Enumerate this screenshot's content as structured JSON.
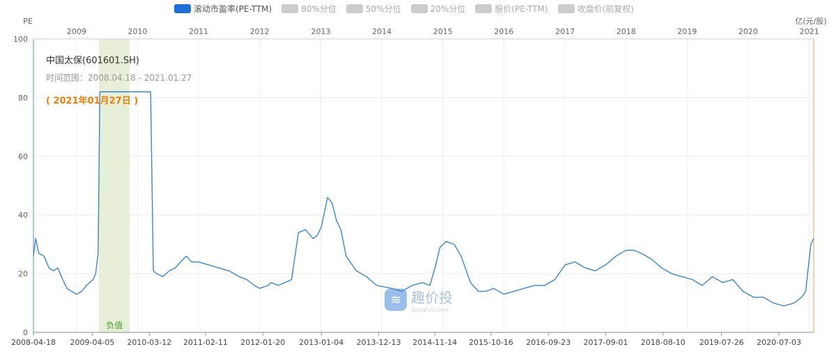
{
  "legend": [
    {
      "label": "滚动市盈率(PE-TTM)",
      "color": "#1f6fd6",
      "active": true
    },
    {
      "label": "80%分位",
      "color": "#cccccc",
      "active": false
    },
    {
      "label": "50%分位",
      "color": "#cccccc",
      "active": false
    },
    {
      "label": "20%分位",
      "color": "#cccccc",
      "active": false
    },
    {
      "label": "股价(PE-TTM)",
      "color": "#cccccc",
      "active": false
    },
    {
      "label": "收盘价(前复权)",
      "color": "#cccccc",
      "active": false
    }
  ],
  "info": {
    "name": "中国太保(601601.SH)",
    "range": "时间范围：2008.04.18 - 2021.01.27",
    "date": "( 2021年01月27日 )"
  },
  "watermark": {
    "text": "趣价投",
    "sub": "Qujiatou.com"
  },
  "chart_data": {
    "type": "line",
    "ylabel_left": "PE",
    "ylabel_right": "亿(元/股)",
    "ylim": [
      0,
      100
    ],
    "yticks": [
      0,
      20,
      40,
      60,
      80,
      100
    ],
    "xlim": [
      "2008-04-18",
      "2021-01-27"
    ],
    "bottom_ticks": [
      "2008-04-18",
      "2009-04-05",
      "2010-03-12",
      "2011-02-11",
      "2012-01-20",
      "2013-01-04",
      "2013-12-13",
      "2014-11-14",
      "2015-10-16",
      "2016-09-23",
      "2017-09-01",
      "2018-08-10",
      "2019-07-26",
      "2020-07-03"
    ],
    "top_ticks": [
      "2009",
      "2010",
      "2011",
      "2012",
      "2013",
      "2014",
      "2015",
      "2016",
      "2017",
      "2018",
      "2019",
      "2020",
      "2021"
    ],
    "shaded_region": {
      "start": "2009-05-15",
      "end": "2009-11-15",
      "label": "负值",
      "color": "#e7efd9"
    },
    "grid": true,
    "series": [
      {
        "name": "滚动市盈率(PE-TTM)",
        "color": "#3a86c8",
        "x": [
          "2008-04-18",
          "2008-05-01",
          "2008-05-20",
          "2008-06-20",
          "2008-07-20",
          "2008-08-15",
          "2008-09-10",
          "2008-10-10",
          "2008-11-05",
          "2008-12-01",
          "2009-01-01",
          "2009-02-01",
          "2009-03-01",
          "2009-04-10",
          "2009-04-25",
          "2009-05-10",
          "2009-05-20",
          "2009-08-01",
          "2010-03-20",
          "2010-04-05",
          "2010-04-25",
          "2010-06-01",
          "2010-07-10",
          "2010-08-15",
          "2010-09-15",
          "2010-10-20",
          "2010-11-20",
          "2011-01-01",
          "2011-03-01",
          "2011-05-01",
          "2011-07-01",
          "2011-09-01",
          "2011-10-15",
          "2011-12-01",
          "2012-01-01",
          "2012-02-20",
          "2012-03-10",
          "2012-04-20",
          "2012-06-01",
          "2012-07-10",
          "2012-08-20",
          "2012-10-01",
          "2012-11-15",
          "2012-12-10",
          "2013-01-04",
          "2013-02-10",
          "2013-03-10",
          "2013-04-05",
          "2013-05-01",
          "2013-06-01",
          "2013-08-01",
          "2013-10-01",
          "2013-12-01",
          "2014-03-01",
          "2014-05-01",
          "2014-07-01",
          "2014-09-01",
          "2014-10-15",
          "2014-11-15",
          "2014-12-15",
          "2015-01-20",
          "2015-03-10",
          "2015-04-20",
          "2015-06-15",
          "2015-08-01",
          "2015-09-15",
          "2015-11-01",
          "2016-01-01",
          "2016-03-01",
          "2016-05-01",
          "2016-07-01",
          "2016-09-01",
          "2016-11-01",
          "2017-01-01",
          "2017-03-01",
          "2017-05-01",
          "2017-07-01",
          "2017-09-01",
          "2017-11-01",
          "2018-01-01",
          "2018-02-15",
          "2018-04-01",
          "2018-06-01",
          "2018-08-01",
          "2018-10-01",
          "2018-12-01",
          "2019-02-01",
          "2019-04-01",
          "2019-06-01",
          "2019-08-01",
          "2019-10-01",
          "2019-12-01",
          "2020-02-01",
          "2020-04-01",
          "2020-06-01",
          "2020-08-01",
          "2020-10-01",
          "2020-11-15",
          "2020-12-10",
          "2021-01-10",
          "2021-01-27"
        ],
        "y": [
          26,
          32,
          27,
          26,
          22,
          21,
          22,
          18,
          15,
          14,
          13,
          14,
          16,
          18,
          20,
          27,
          82,
          82,
          82,
          21,
          20,
          19,
          21,
          22,
          24,
          26,
          24,
          24,
          23,
          22,
          21,
          19,
          18,
          16,
          15,
          16,
          17,
          16,
          17,
          18,
          34,
          35,
          32,
          33,
          36,
          46,
          44,
          38,
          35,
          26,
          21,
          19,
          16,
          15,
          14,
          16,
          17,
          16,
          22,
          29,
          31,
          30,
          26,
          17,
          14,
          14,
          15,
          13,
          14,
          15,
          16,
          16,
          18,
          23,
          24,
          22,
          21,
          23,
          26,
          28,
          28,
          27,
          25,
          22,
          20,
          19,
          18,
          16,
          19,
          17,
          18,
          14,
          12,
          12,
          10,
          9,
          10,
          12,
          14,
          30,
          32
        ]
      }
    ]
  }
}
